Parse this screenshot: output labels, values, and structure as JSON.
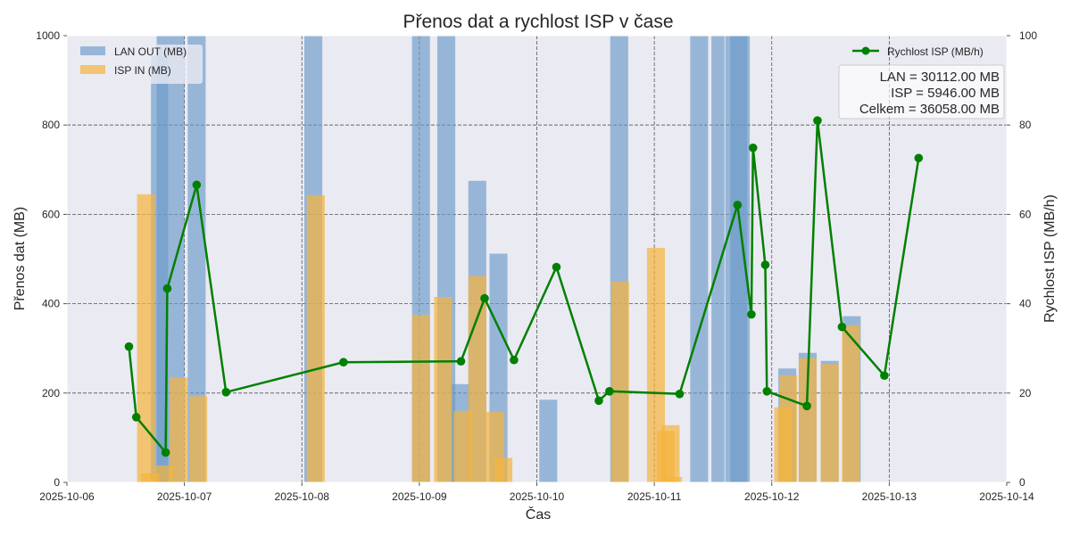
{
  "chart_data": {
    "type": "bar",
    "title": "Přenos dat a rychlost ISP v čase",
    "xlabel": "Čas",
    "ylabel": "Přenos dat (MB)",
    "y2label": "Rychlost ISP (MB/h)",
    "xlim": [
      "2025-10-06T00:00",
      "2025-10-14T00:00"
    ],
    "ylim": [
      0,
      1000
    ],
    "y2lim": [
      0,
      100
    ],
    "x_ticks": [
      "2025-10-06",
      "2025-10-07",
      "2025-10-08",
      "2025-10-09",
      "2025-10-10",
      "2025-10-11",
      "2025-10-12",
      "2025-10-13",
      "2025-10-14"
    ],
    "y_ticks": [
      "0",
      "200",
      "400",
      "600",
      "800",
      "1000"
    ],
    "y2_ticks": [
      "0",
      "20",
      "40",
      "60",
      "80",
      "100"
    ],
    "grid": true,
    "legend_left": {
      "placement": "top-left",
      "entries": [
        {
          "label": "LAN OUT (MB)",
          "color": "#6a9ac8"
        },
        {
          "label": "ISP IN (MB)",
          "color": "#f5b43c"
        }
      ]
    },
    "legend_right": {
      "placement": "top-right",
      "entries": [
        {
          "label": "Rychlost ISP (MB/h)",
          "color": "#008000"
        }
      ]
    },
    "stats_box": [
      "LAN = 30112.00 MB",
      "ISP = 5946.00 MB",
      "Celkem = 36058.00 MB"
    ],
    "series": [
      {
        "name": "LAN OUT (MB)",
        "kind": "bar",
        "color": "#6a9ac8",
        "points": [
          {
            "x0": "2025-10-06T17:10",
            "x1": "2025-10-06T20:40",
            "y": 955
          },
          {
            "x0": "2025-10-06T18:20",
            "x1": "2025-10-07T00:00",
            "y": 1000
          },
          {
            "x0": "2025-10-07T00:40",
            "x1": "2025-10-07T04:20",
            "y": 1000
          },
          {
            "x0": "2025-10-08T00:30",
            "x1": "2025-10-08T04:10",
            "y": 1000
          },
          {
            "x0": "2025-10-08T22:30",
            "x1": "2025-10-09T02:10",
            "y": 1000
          },
          {
            "x0": "2025-10-09T03:40",
            "x1": "2025-10-09T07:20",
            "y": 1000
          },
          {
            "x0": "2025-10-09T06:30",
            "x1": "2025-10-09T10:10",
            "y": 220
          },
          {
            "x0": "2025-10-09T10:00",
            "x1": "2025-10-09T13:40",
            "y": 675
          },
          {
            "x0": "2025-10-09T14:20",
            "x1": "2025-10-09T18:00",
            "y": 512
          },
          {
            "x0": "2025-10-10T00:30",
            "x1": "2025-10-10T04:10",
            "y": 185
          },
          {
            "x0": "2025-10-10T15:00",
            "x1": "2025-10-10T18:40",
            "y": 1000
          },
          {
            "x0": "2025-10-11T07:20",
            "x1": "2025-10-11T11:00",
            "y": 1000
          },
          {
            "x0": "2025-10-11T11:40",
            "x1": "2025-10-11T14:20",
            "y": 1000
          },
          {
            "x0": "2025-10-11T14:30",
            "x1": "2025-10-11T17:00",
            "y": 1000
          },
          {
            "x0": "2025-10-11T15:30",
            "x1": "2025-10-11T19:00",
            "y": 1000
          },
          {
            "x0": "2025-10-11T17:00",
            "x1": "2025-10-11T19:30",
            "y": 1000
          },
          {
            "x0": "2025-10-12T01:20",
            "x1": "2025-10-12T05:00",
            "y": 255
          },
          {
            "x0": "2025-10-12T05:30",
            "x1": "2025-10-12T09:10",
            "y": 290
          },
          {
            "x0": "2025-10-12T10:00",
            "x1": "2025-10-12T13:40",
            "y": 272
          },
          {
            "x0": "2025-10-12T14:30",
            "x1": "2025-10-12T18:10",
            "y": 372
          }
        ]
      },
      {
        "name": "ISP IN (MB)",
        "kind": "bar",
        "color": "#f5b43c",
        "points": [
          {
            "x0": "2025-10-06T14:20",
            "x1": "2025-10-06T18:00",
            "y": 645
          },
          {
            "x0": "2025-10-06T15:10",
            "x1": "2025-10-06T18:50",
            "y": 20
          },
          {
            "x0": "2025-10-06T18:00",
            "x1": "2025-10-06T21:40",
            "y": 38
          },
          {
            "x0": "2025-10-06T21:00",
            "x1": "2025-10-07T00:40",
            "y": 235
          },
          {
            "x0": "2025-10-07T01:00",
            "x1": "2025-10-07T04:40",
            "y": 193
          },
          {
            "x0": "2025-10-08T01:00",
            "x1": "2025-10-08T04:40",
            "y": 643
          },
          {
            "x0": "2025-10-08T22:30",
            "x1": "2025-10-09T02:10",
            "y": 375
          },
          {
            "x0": "2025-10-09T03:00",
            "x1": "2025-10-09T06:40",
            "y": 415
          },
          {
            "x0": "2025-10-09T07:00",
            "x1": "2025-10-09T10:40",
            "y": 160
          },
          {
            "x0": "2025-10-09T10:00",
            "x1": "2025-10-09T13:40",
            "y": 462
          },
          {
            "x0": "2025-10-09T13:40",
            "x1": "2025-10-09T17:20",
            "y": 158
          },
          {
            "x0": "2025-10-09T15:20",
            "x1": "2025-10-09T19:00",
            "y": 55
          },
          {
            "x0": "2025-10-10T15:10",
            "x1": "2025-10-10T18:50",
            "y": 450
          },
          {
            "x0": "2025-10-10T22:30",
            "x1": "2025-10-11T02:10",
            "y": 525
          },
          {
            "x0": "2025-10-11T00:30",
            "x1": "2025-10-11T04:10",
            "y": 115
          },
          {
            "x0": "2025-10-11T01:30",
            "x1": "2025-10-11T05:10",
            "y": 128
          },
          {
            "x0": "2025-10-11T02:00",
            "x1": "2025-10-11T05:40",
            "y": 12
          },
          {
            "x0": "2025-10-12T00:30",
            "x1": "2025-10-12T04:10",
            "y": 168
          },
          {
            "x0": "2025-10-12T01:30",
            "x1": "2025-10-12T05:10",
            "y": 240
          },
          {
            "x0": "2025-10-12T05:30",
            "x1": "2025-10-12T09:10",
            "y": 278
          },
          {
            "x0": "2025-10-12T10:00",
            "x1": "2025-10-12T13:40",
            "y": 265
          },
          {
            "x0": "2025-10-12T14:20",
            "x1": "2025-10-12T18:00",
            "y": 352
          }
        ]
      },
      {
        "name": "Rychlost ISP (MB/h)",
        "kind": "line",
        "axis": "right",
        "color": "#008000",
        "points": [
          {
            "x": "2025-10-06T12:40",
            "y": 30.4
          },
          {
            "x": "2025-10-06T14:10",
            "y": 14.6
          },
          {
            "x": "2025-10-06T20:10",
            "y": 6.7
          },
          {
            "x": "2025-10-06T20:30",
            "y": 43.4
          },
          {
            "x": "2025-10-07T02:30",
            "y": 66.6
          },
          {
            "x": "2025-10-07T08:30",
            "y": 20.2
          },
          {
            "x": "2025-10-08T08:30",
            "y": 26.9
          },
          {
            "x": "2025-10-09T08:30",
            "y": 27.1
          },
          {
            "x": "2025-10-09T13:20",
            "y": 41.2
          },
          {
            "x": "2025-10-09T19:20",
            "y": 27.4
          },
          {
            "x": "2025-10-10T04:00",
            "y": 48.2
          },
          {
            "x": "2025-10-10T12:40",
            "y": 18.3
          },
          {
            "x": "2025-10-10T14:50",
            "y": 20.4
          },
          {
            "x": "2025-10-11T05:10",
            "y": 19.8
          },
          {
            "x": "2025-10-11T17:00",
            "y": 62.1
          },
          {
            "x": "2025-10-11T19:50",
            "y": 37.6
          },
          {
            "x": "2025-10-11T20:10",
            "y": 74.9
          },
          {
            "x": "2025-10-11T22:40",
            "y": 48.7
          },
          {
            "x": "2025-10-11T23:00",
            "y": 20.4
          },
          {
            "x": "2025-10-12T07:10",
            "y": 17.1
          },
          {
            "x": "2025-10-12T09:20",
            "y": 81.0
          },
          {
            "x": "2025-10-12T14:20",
            "y": 34.8
          },
          {
            "x": "2025-10-12T23:00",
            "y": 23.9
          },
          {
            "x": "2025-10-13T06:00",
            "y": 72.6
          }
        ]
      }
    ]
  }
}
